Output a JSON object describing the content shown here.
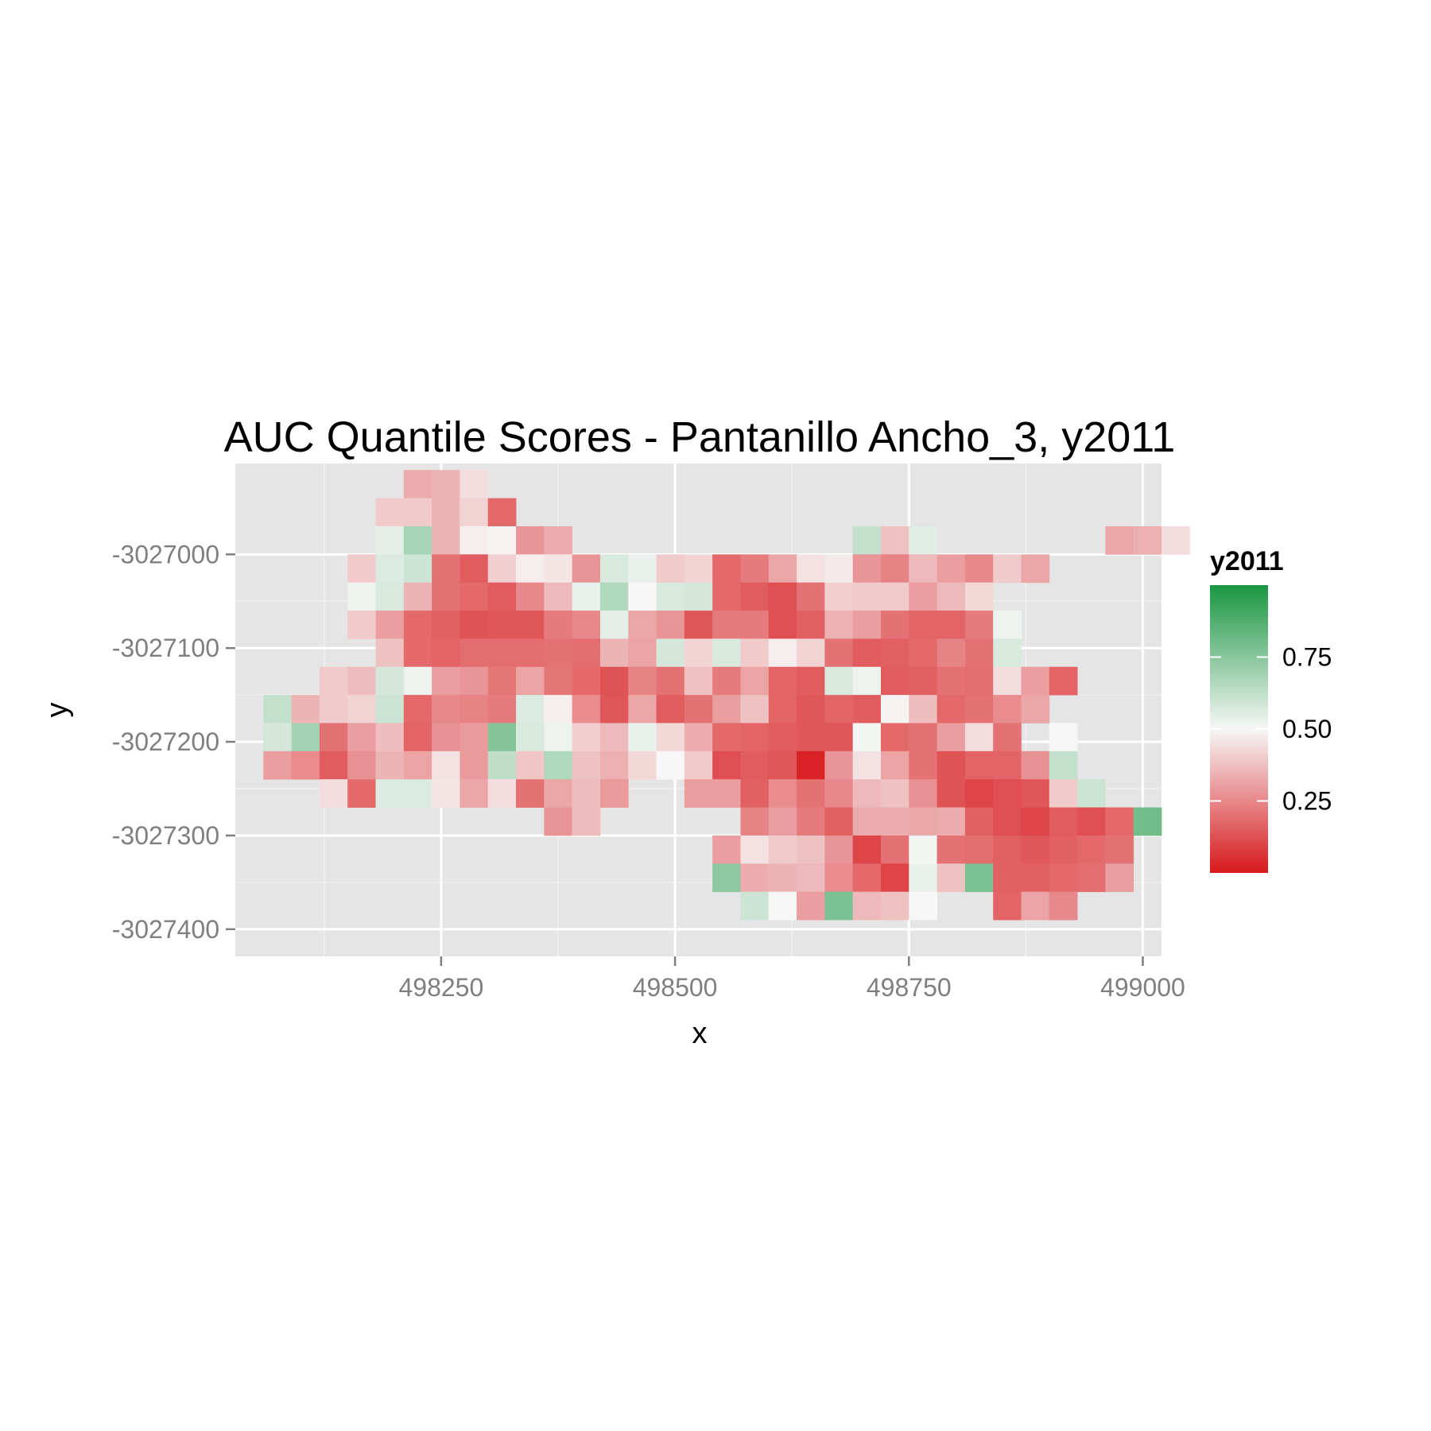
{
  "chart_data": {
    "type": "heatmap",
    "title": "AUC Quantile Scores - Pantanillo Ancho_3, y2011",
    "xlabel": "x",
    "ylabel": "y",
    "xlim": [
      498030,
      499020
    ],
    "ylim": [
      -3027429,
      -3026903
    ],
    "x_ticks": [
      498250,
      498500,
      498750,
      499000
    ],
    "x_tick_labels": [
      "498250",
      "498500",
      "498750",
      "499000"
    ],
    "y_ticks": [
      -3027000,
      -3027100,
      -3027200,
      -3027300,
      -3027400
    ],
    "y_tick_labels": [
      "-3027000",
      "-3027100",
      "-3027200",
      "-3027300",
      "-3027400"
    ],
    "grid": true,
    "legend": {
      "title": "y2011",
      "position": "right",
      "breaks": [
        0.25,
        0.5,
        0.75
      ],
      "break_labels": [
        "0.25",
        "0.50",
        "0.75"
      ],
      "limits": [
        0.0,
        1.0
      ]
    },
    "colors": {
      "low": "#d7191c",
      "mid": "#f7f7f7",
      "high": "#1a9641",
      "panel": "#e5e5e5",
      "grid": "#ffffff"
    },
    "cell": {
      "x0": 498075,
      "dx": 30,
      "y0": -3026925,
      "dy": 30
    },
    "rows": [
      {
        "col0": 5,
        "values": [
          0.33,
          0.35,
          0.44
        ]
      },
      {
        "col0": 4,
        "values": [
          0.4,
          0.4,
          0.35,
          0.42,
          0.18
        ]
      },
      {
        "col0": 4,
        "values": [
          0.54,
          0.68,
          0.35,
          0.48,
          0.49,
          0.28,
          0.33,
          null,
          null,
          null,
          null,
          null,
          null,
          null,
          null,
          null,
          null,
          0.62,
          0.38,
          0.55,
          null,
          null,
          null,
          null,
          null,
          null,
          0.32,
          0.34,
          0.44
        ]
      },
      {
        "col0": 3,
        "values": [
          0.4,
          0.56,
          0.6,
          0.2,
          0.15,
          0.41,
          0.48,
          0.46,
          0.28,
          0.57,
          0.53,
          0.4,
          0.42,
          0.18,
          0.22,
          0.32,
          0.45,
          0.47,
          0.28,
          0.24,
          0.36,
          0.3,
          0.25,
          0.4,
          0.32
        ]
      },
      {
        "col0": 3,
        "values": [
          0.52,
          0.57,
          0.35,
          0.2,
          0.18,
          0.15,
          0.25,
          0.36,
          0.53,
          0.66,
          0.5,
          0.57,
          0.58,
          0.18,
          0.15,
          0.12,
          0.2,
          0.41,
          0.4,
          0.4,
          0.3,
          0.36,
          0.43
        ]
      },
      {
        "col0": 3,
        "values": [
          0.4,
          0.3,
          0.18,
          0.16,
          0.13,
          0.14,
          0.14,
          0.22,
          0.25,
          0.54,
          0.32,
          0.28,
          0.14,
          0.22,
          0.22,
          0.12,
          0.16,
          0.34,
          0.3,
          0.2,
          0.17,
          0.17,
          0.22,
          0.52
        ]
      },
      {
        "col0": 4,
        "values": [
          0.38,
          0.18,
          0.17,
          0.19,
          0.19,
          0.19,
          0.2,
          0.19,
          0.35,
          0.31,
          0.58,
          0.42,
          0.57,
          0.4,
          0.48,
          0.42,
          0.2,
          0.15,
          0.16,
          0.18,
          0.24,
          0.2,
          0.57
        ]
      },
      {
        "col0": 2,
        "values": [
          0.4,
          0.37,
          0.58,
          0.52,
          0.3,
          0.28,
          0.21,
          0.31,
          0.21,
          0.18,
          0.13,
          0.24,
          0.2,
          0.38,
          0.22,
          0.31,
          0.17,
          0.15,
          0.57,
          0.52,
          0.15,
          0.16,
          0.2,
          0.19,
          0.44,
          0.3,
          0.17
        ]
      },
      {
        "col0": 0,
        "values": [
          0.62,
          0.35,
          0.4,
          0.42,
          0.6,
          0.18,
          0.25,
          0.24,
          0.22,
          0.56,
          0.48,
          0.26,
          0.14,
          0.32,
          0.15,
          0.2,
          0.3,
          0.38,
          0.17,
          0.14,
          0.17,
          0.15,
          0.49,
          0.37,
          0.18,
          0.2,
          0.26,
          0.32
        ]
      },
      {
        "col0": 0,
        "values": [
          0.58,
          0.69,
          0.2,
          0.3,
          0.37,
          0.17,
          0.27,
          0.29,
          0.76,
          0.57,
          0.52,
          0.41,
          0.36,
          0.53,
          0.43,
          0.33,
          0.18,
          0.17,
          0.15,
          0.14,
          0.14,
          0.51,
          0.18,
          0.2,
          0.3,
          0.44,
          0.2,
          null,
          0.5
        ]
      },
      {
        "col0": 0,
        "values": [
          0.3,
          0.26,
          0.15,
          0.27,
          0.35,
          0.31,
          0.45,
          0.29,
          0.63,
          0.39,
          0.66,
          0.38,
          0.34,
          0.43,
          0.5,
          0.4,
          0.12,
          0.15,
          0.14,
          0.02,
          0.28,
          0.45,
          0.31,
          0.2,
          0.13,
          0.17,
          0.17,
          0.27,
          0.62
        ]
      },
      {
        "col0": 2,
        "values": [
          0.44,
          0.18,
          0.56,
          0.56,
          0.46,
          0.32,
          0.44,
          0.2,
          0.32,
          0.37,
          0.29,
          null,
          null,
          0.3,
          0.3,
          0.16,
          0.26,
          0.2,
          0.25,
          0.36,
          0.38,
          0.27,
          0.13,
          0.1,
          0.12,
          0.14,
          0.4,
          0.6
        ]
      },
      {
        "col0": 10,
        "values": [
          0.28,
          0.37,
          null,
          null,
          null,
          null,
          null,
          0.24,
          0.3,
          0.22,
          0.16,
          0.33,
          0.33,
          0.32,
          0.33,
          0.16,
          0.12,
          0.1,
          0.15,
          0.12,
          0.18,
          0.8
        ]
      },
      {
        "col0": 16,
        "values": [
          0.3,
          0.45,
          0.4,
          0.38,
          0.28,
          0.1,
          0.2,
          0.51,
          0.2,
          0.19,
          0.16,
          0.14,
          0.16,
          0.18,
          0.2
        ]
      },
      {
        "col0": 16,
        "values": [
          0.74,
          0.33,
          0.35,
          0.36,
          0.26,
          0.18,
          0.1,
          0.53,
          0.38,
          0.78,
          0.16,
          0.16,
          0.18,
          0.19,
          0.3
        ]
      },
      {
        "col0": 17,
        "values": [
          0.6,
          0.5,
          0.3,
          0.78,
          0.36,
          0.38,
          0.5,
          null,
          null,
          0.17,
          0.31,
          0.25
        ]
      }
    ]
  }
}
